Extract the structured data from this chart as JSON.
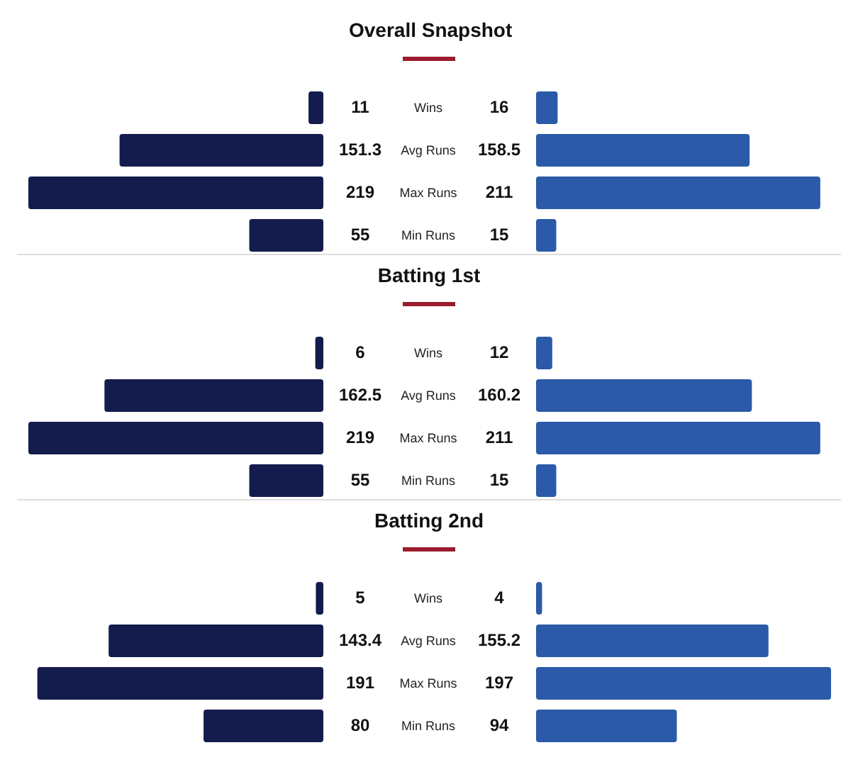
{
  "chart_data": [
    {
      "type": "bar",
      "orientation": "horizontal",
      "title": "Overall Snapshot",
      "categories": [
        "Wins",
        "Avg Runs",
        "Max Runs",
        "Min Runs"
      ],
      "series": [
        {
          "color": "#141b4d",
          "values": [
            11,
            151.3,
            219,
            55
          ]
        }
      ],
      "data_labels": true,
      "tick_labels": "y"
    },
    {
      "type": "bar",
      "orientation": "horizontal",
      "categories": [
        null,
        null,
        null,
        null
      ],
      "series": [
        {
          "color": "#2a5aa8",
          "values": [
            16,
            158.5,
            211,
            15
          ]
        }
      ],
      "data_labels": true,
      "tick_labels": false
    },
    {
      "type": "bar",
      "orientation": "horizontal",
      "title": "Batting 1st",
      "categories": [
        "Wins",
        "Avg Runs",
        "Max Runs",
        "Min Runs"
      ],
      "series": [
        {
          "color": "#141b4d",
          "values": [
            6,
            162.5,
            219,
            55
          ]
        }
      ],
      "data_labels": true,
      "tick_labels": "y"
    },
    {
      "type": "bar",
      "orientation": "horizontal",
      "categories": [
        null,
        null,
        null,
        null
      ],
      "series": [
        {
          "color": "#2a5aa8",
          "values": [
            12,
            160.2,
            211,
            15
          ]
        }
      ],
      "data_labels": true,
      "tick_labels": false
    },
    {
      "type": "bar",
      "orientation": "horizontal",
      "title": "Batting 2nd",
      "categories": [
        "Wins",
        "Avg Runs",
        "Max Runs",
        "Min Runs"
      ],
      "series": [
        {
          "color": "#141b4d",
          "values": [
            5,
            143.4,
            191,
            80
          ]
        }
      ],
      "data_labels": true,
      "tick_labels": "y"
    },
    {
      "type": "bar",
      "orientation": "horizontal",
      "categories": [
        null,
        null,
        null,
        null
      ],
      "series": [
        {
          "color": "#2a5aa8",
          "values": [
            4,
            155.2,
            197,
            94
          ]
        }
      ],
      "data_labels": true,
      "tick_labels": false
    }
  ]
}
